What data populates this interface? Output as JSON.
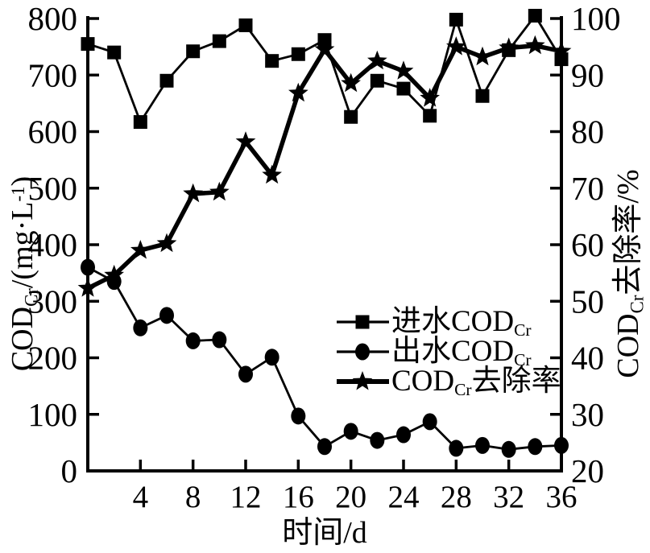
{
  "meta": {
    "background_color": "#ffffff",
    "ink_color": "#000000"
  },
  "chart_data": {
    "type": "line",
    "title": "",
    "x": [
      0,
      2,
      4,
      6,
      8,
      10,
      12,
      14,
      16,
      18,
      20,
      22,
      24,
      26,
      28,
      30,
      32,
      34,
      36
    ],
    "series": [
      {
        "name": "进水CODCr",
        "axis": "left",
        "marker": "square",
        "line_width": 2.8,
        "values": [
          755,
          740,
          617,
          690,
          742,
          760,
          788,
          725,
          737,
          762,
          626,
          690,
          676,
          628,
          798,
          663,
          744,
          805,
          728
        ]
      },
      {
        "name": "出水CODCr",
        "axis": "left",
        "marker": "ellipse",
        "line_width": 2.8,
        "values": [
          360,
          335,
          253,
          275,
          230,
          232,
          171,
          201,
          97,
          43,
          70,
          54,
          64,
          87,
          40,
          45,
          38,
          43,
          45
        ]
      },
      {
        "name": "CODCr去除率",
        "axis": "right",
        "marker": "star",
        "line_width": 5.5,
        "values": [
          52.3,
          54.6,
          59.0,
          60.2,
          69.0,
          69.3,
          78.2,
          72.3,
          86.8,
          94.5,
          88.5,
          92.5,
          90.7,
          85.9,
          95.0,
          93.2,
          94.8,
          95.2,
          94.2
        ]
      }
    ],
    "xlabel": "时间/d",
    "ylabel_left": "CODCr/(mg·L⁻¹)",
    "ylabel_right": "CODCr去除率/%",
    "xlim": [
      0,
      36
    ],
    "xticks": [
      4,
      8,
      12,
      16,
      20,
      24,
      28,
      32,
      36
    ],
    "ylim_left": [
      0,
      800
    ],
    "yticks_left": [
      0,
      100,
      200,
      300,
      400,
      500,
      600,
      700,
      800
    ],
    "ylim_right": [
      20,
      100
    ],
    "yticks_right": [
      20,
      30,
      40,
      50,
      60,
      70,
      80,
      90,
      100
    ],
    "grid": false,
    "legend_position": "inside lower-right"
  },
  "axis_titles": {
    "left": {
      "pre": "COD",
      "sub": "Cr",
      "mid": "/(mg·L",
      "sup": "-1",
      "post": ")"
    },
    "right": {
      "pre": "COD",
      "sub": "Cr",
      "post": "去除率/%"
    },
    "x": "时间/d"
  },
  "legend": {
    "items": [
      {
        "label_main": "进水COD",
        "label_sub": "Cr",
        "label_rest": "",
        "marker": "square"
      },
      {
        "label_main": "出水COD",
        "label_sub": "Cr",
        "label_rest": "",
        "marker": "ellipse"
      },
      {
        "label_main": "COD",
        "label_sub": "Cr",
        "label_rest": "去除率",
        "marker": "star"
      }
    ]
  }
}
